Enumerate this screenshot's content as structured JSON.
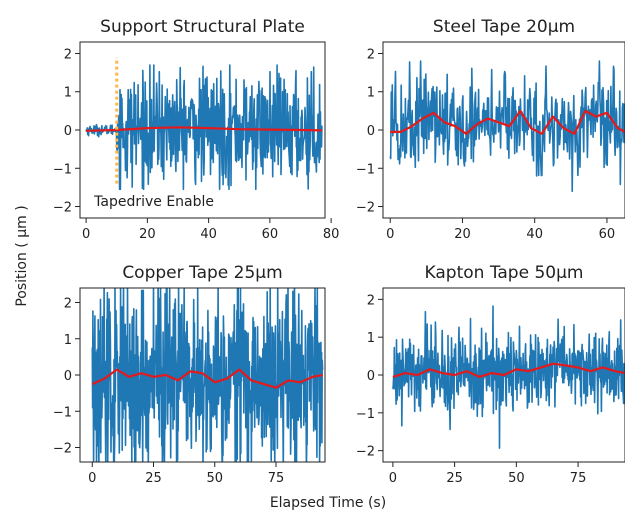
{
  "figure": {
    "ylabel": "Position ( μm )",
    "xlabel": "Elapsed Time (s)"
  },
  "chart_data": [
    {
      "type": "line",
      "title": "Support Structural Plate",
      "xlim": [
        -2,
        78
      ],
      "ylim": [
        -2.3,
        2.3
      ],
      "xticks": [
        0,
        20,
        40,
        60,
        80
      ],
      "yticks": [
        -2,
        -1,
        0,
        1,
        2
      ],
      "colors": {
        "raw": "#1f77b4",
        "smooth": "#e31a1c",
        "marker": "#ffb74d"
      },
      "annotation": {
        "text": "Tapedrive Enable",
        "x": 10,
        "y": -1.85
      },
      "marker_line": {
        "x": 10,
        "y": [
          -1.4,
          1.9
        ]
      },
      "raw": {
        "pre": {
          "t_end": 10,
          "amp": 0.07
        },
        "post": {
          "t_start": 10,
          "t_end": 77,
          "amp": 0.72,
          "peak": 1.7,
          "min": -1.55
        },
        "samples": 600
      },
      "smooth": {
        "x": [
          0,
          10,
          20,
          30,
          40,
          50,
          60,
          70,
          77
        ],
        "y": [
          -0.02,
          0.0,
          0.05,
          0.07,
          0.05,
          0.02,
          0.01,
          0.0,
          -0.01
        ]
      }
    },
    {
      "type": "line",
      "title": "Steel Tape 20μm",
      "xlim": [
        -2,
        65
      ],
      "ylim": [
        -2.3,
        2.3
      ],
      "xticks": [
        0,
        20,
        40,
        60
      ],
      "yticks": [
        -2,
        -1,
        0,
        1,
        2
      ],
      "colors": {
        "raw": "#1f77b4",
        "smooth": "#e31a1c"
      },
      "raw": {
        "t_start": 0,
        "t_end": 65,
        "amp": 0.55,
        "peak": 1.8,
        "min": -1.6,
        "samples": 450
      },
      "smooth": {
        "x": [
          0,
          3,
          6,
          9,
          12,
          15,
          18,
          21,
          24,
          27,
          30,
          33,
          36,
          39,
          42,
          45,
          48,
          51,
          54,
          57,
          60,
          63,
          65
        ],
        "y": [
          -0.05,
          -0.05,
          0.1,
          0.3,
          0.45,
          0.2,
          0.1,
          -0.1,
          0.15,
          0.3,
          0.2,
          0.1,
          0.5,
          0.05,
          -0.1,
          0.35,
          0.05,
          -0.1,
          0.5,
          0.35,
          0.45,
          0.05,
          -0.05
        ]
      }
    },
    {
      "type": "line",
      "title": "Copper Tape 25μm",
      "xlim": [
        -5,
        95
      ],
      "ylim": [
        -2.4,
        2.4
      ],
      "xticks": [
        0,
        25,
        50,
        75
      ],
      "yticks": [
        -2,
        -1,
        0,
        1,
        2
      ],
      "colors": {
        "raw": "#1f77b4",
        "smooth": "#e31a1c"
      },
      "raw": {
        "t_start": 0,
        "t_end": 94,
        "amp": 1.25,
        "peak": 2.6,
        "min": -2.6,
        "samples": 700
      },
      "smooth": {
        "x": [
          0,
          5,
          10,
          15,
          20,
          25,
          30,
          35,
          40,
          45,
          50,
          55,
          60,
          65,
          70,
          75,
          80,
          85,
          90,
          94
        ],
        "y": [
          -0.25,
          -0.1,
          0.15,
          -0.05,
          0.05,
          -0.05,
          0.0,
          -0.15,
          0.1,
          0.05,
          -0.2,
          -0.1,
          0.15,
          -0.15,
          -0.25,
          -0.35,
          -0.15,
          -0.2,
          -0.05,
          0.0
        ]
      }
    },
    {
      "type": "line",
      "title": "Kapton Tape 50μm",
      "xlim": [
        -4,
        94
      ],
      "ylim": [
        -2.3,
        2.3
      ],
      "xticks": [
        0,
        25,
        50,
        75
      ],
      "yticks": [
        -2,
        -1,
        0,
        1,
        2
      ],
      "colors": {
        "raw": "#1f77b4",
        "smooth": "#e31a1c"
      },
      "raw": {
        "t_start": 0,
        "t_end": 94,
        "amp": 0.5,
        "peak": 2.4,
        "min": -2.0,
        "samples": 650
      },
      "smooth": {
        "x": [
          0,
          5,
          10,
          15,
          20,
          25,
          30,
          35,
          40,
          45,
          50,
          55,
          60,
          65,
          70,
          75,
          80,
          85,
          90,
          94
        ],
        "y": [
          -0.05,
          0.05,
          0.0,
          0.15,
          0.05,
          0.0,
          0.1,
          -0.05,
          0.05,
          0.0,
          0.15,
          0.1,
          0.2,
          0.3,
          0.25,
          0.2,
          0.1,
          0.2,
          0.1,
          0.05
        ]
      }
    }
  ]
}
